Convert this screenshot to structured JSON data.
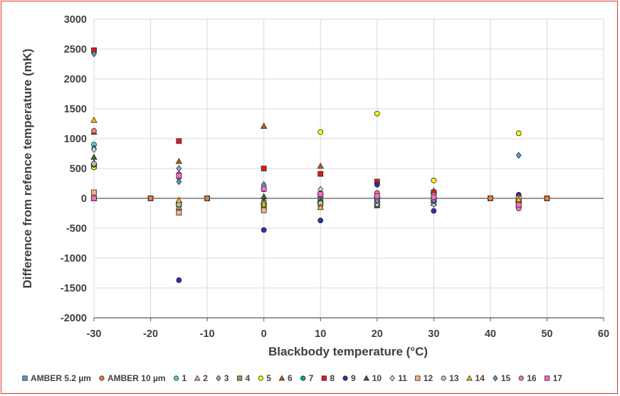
{
  "chart_data": {
    "type": "scatter",
    "xlabel": "Blackbody temperature (°C)",
    "ylabel": "Difference  from refence temperature (mK)",
    "xlim": [
      -30,
      60
    ],
    "ylim": [
      -2000,
      3000
    ],
    "xticks": [
      -30,
      -20,
      -10,
      0,
      10,
      20,
      30,
      40,
      50,
      60
    ],
    "yticks": [
      -2000,
      -1500,
      -1000,
      -500,
      0,
      500,
      1000,
      1500,
      2000,
      2500,
      3000
    ],
    "grid": true,
    "legend_position": "bottom",
    "series": [
      {
        "name": "AMBER 5.2 µm",
        "marker": "square",
        "color": "#5b9bd5",
        "points": [
          [
            -30,
            0
          ],
          [
            -20,
            0
          ],
          [
            -10,
            0
          ],
          [
            40,
            0
          ],
          [
            50,
            0
          ]
        ]
      },
      {
        "name": "AMBER 10 µm",
        "marker": "circle",
        "color": "#ed7d31",
        "points": [
          [
            -30,
            0
          ],
          [
            -20,
            0
          ],
          [
            -10,
            0
          ],
          [
            40,
            0
          ],
          [
            50,
            0
          ]
        ]
      },
      {
        "name": "1",
        "marker": "circle",
        "color": "#4dd0e1",
        "points": [
          [
            -30,
            900
          ],
          [
            -15,
            350
          ],
          [
            0,
            -130
          ],
          [
            10,
            -50
          ],
          [
            20,
            20
          ],
          [
            30,
            -60
          ],
          [
            45,
            -70
          ]
        ]
      },
      {
        "name": "2",
        "marker": "triangle",
        "color": "#f4b183",
        "points": [
          [
            -30,
            600
          ],
          [
            -15,
            -150
          ],
          [
            0,
            -50
          ],
          [
            10,
            100
          ],
          [
            20,
            50
          ],
          [
            30,
            130
          ],
          [
            45,
            -30
          ]
        ]
      },
      {
        "name": "3",
        "marker": "diamond",
        "color": "#8faadc",
        "points": [
          [
            -30,
            840
          ],
          [
            -15,
            500
          ],
          [
            0,
            -100
          ],
          [
            10,
            20
          ],
          [
            20,
            -50
          ],
          [
            30,
            20
          ],
          [
            45,
            -120
          ]
        ]
      },
      {
        "name": "4",
        "marker": "square",
        "color": "#70ad47",
        "points": [
          [
            -30,
            540
          ],
          [
            -15,
            -100
          ],
          [
            0,
            -150
          ],
          [
            10,
            -20
          ],
          [
            20,
            -80
          ],
          [
            30,
            -30
          ],
          [
            45,
            -40
          ]
        ]
      },
      {
        "name": "5",
        "marker": "circle",
        "color": "#ffff00",
        "points": [
          [
            -30,
            520
          ],
          [
            -15,
            -120
          ],
          [
            0,
            -110
          ],
          [
            10,
            1110
          ],
          [
            20,
            1420
          ],
          [
            30,
            300
          ],
          [
            45,
            1090
          ]
        ]
      },
      {
        "name": "6",
        "marker": "triangle",
        "color": "#c55a11",
        "points": [
          [
            -30,
            1110
          ],
          [
            -15,
            620
          ],
          [
            0,
            1210
          ],
          [
            10,
            540
          ],
          [
            20,
            -70
          ],
          [
            30,
            50
          ],
          [
            45,
            -100
          ]
        ]
      },
      {
        "name": "7",
        "marker": "circle",
        "color": "#00b050",
        "points": [
          [
            -30,
            560
          ],
          [
            -15,
            -80
          ],
          [
            0,
            -60
          ],
          [
            10,
            -70
          ],
          [
            20,
            -30
          ],
          [
            30,
            -40
          ],
          [
            45,
            -50
          ]
        ]
      },
      {
        "name": "8",
        "marker": "square",
        "color": "#e31a1c",
        "points": [
          [
            -30,
            2480
          ],
          [
            -15,
            960
          ],
          [
            0,
            500
          ],
          [
            10,
            410
          ],
          [
            20,
            280
          ],
          [
            30,
            100
          ],
          [
            45,
            -60
          ]
        ]
      },
      {
        "name": "9",
        "marker": "circle",
        "color": "#2d2db3",
        "points": [
          [
            -30,
            0
          ],
          [
            -15,
            -1370
          ],
          [
            0,
            -530
          ],
          [
            10,
            -370
          ],
          [
            20,
            230
          ],
          [
            30,
            -210
          ],
          [
            45,
            60
          ]
        ]
      },
      {
        "name": "10",
        "marker": "triangle",
        "color": "#2e6b2e",
        "points": [
          [
            -30,
            690
          ],
          [
            -15,
            -60
          ],
          [
            0,
            30
          ],
          [
            10,
            -40
          ],
          [
            20,
            -120
          ],
          [
            30,
            -80
          ],
          [
            45,
            -20
          ]
        ]
      },
      {
        "name": "11",
        "marker": "diamond",
        "color": "#d9d9d9",
        "points": [
          [
            -30,
            820
          ],
          [
            -15,
            380
          ],
          [
            0,
            170
          ],
          [
            10,
            150
          ],
          [
            20,
            -100
          ],
          [
            30,
            -100
          ],
          [
            45,
            20
          ]
        ]
      },
      {
        "name": "12",
        "marker": "square",
        "color": "#f4b183",
        "points": [
          [
            -30,
            100
          ],
          [
            -15,
            -240
          ],
          [
            0,
            -200
          ],
          [
            10,
            -100
          ],
          [
            20,
            -40
          ],
          [
            30,
            -20
          ],
          [
            45,
            0
          ]
        ]
      },
      {
        "name": "13",
        "marker": "circle",
        "color": "#bfbfbf",
        "points": [
          [
            -30,
            580
          ],
          [
            -15,
            -100
          ],
          [
            0,
            -70
          ],
          [
            10,
            -80
          ],
          [
            20,
            -20
          ],
          [
            30,
            -50
          ],
          [
            45,
            -90
          ]
        ]
      },
      {
        "name": "14",
        "marker": "triangle",
        "color": "#ffc000",
        "points": [
          [
            -30,
            1310
          ],
          [
            -15,
            -30
          ],
          [
            0,
            -90
          ],
          [
            10,
            -150
          ],
          [
            20,
            60
          ],
          [
            30,
            -30
          ],
          [
            45,
            -20
          ]
        ]
      },
      {
        "name": "15",
        "marker": "diamond",
        "color": "#5b9bd5",
        "points": [
          [
            -30,
            2420
          ],
          [
            -15,
            280
          ],
          [
            0,
            230
          ],
          [
            10,
            80
          ],
          [
            20,
            -40
          ],
          [
            30,
            -30
          ],
          [
            45,
            720
          ]
        ]
      },
      {
        "name": "16",
        "marker": "circle",
        "color": "#f08080",
        "points": [
          [
            -30,
            1130
          ],
          [
            -15,
            400
          ],
          [
            0,
            150
          ],
          [
            10,
            50
          ],
          [
            20,
            90
          ],
          [
            30,
            60
          ],
          [
            45,
            -170
          ]
        ]
      },
      {
        "name": "17",
        "marker": "square",
        "color": "#ff66cc",
        "points": [
          [
            -30,
            0
          ],
          [
            -15,
            380
          ],
          [
            0,
            160
          ],
          [
            10,
            70
          ],
          [
            20,
            40
          ],
          [
            30,
            20
          ],
          [
            45,
            -110
          ]
        ]
      }
    ]
  }
}
